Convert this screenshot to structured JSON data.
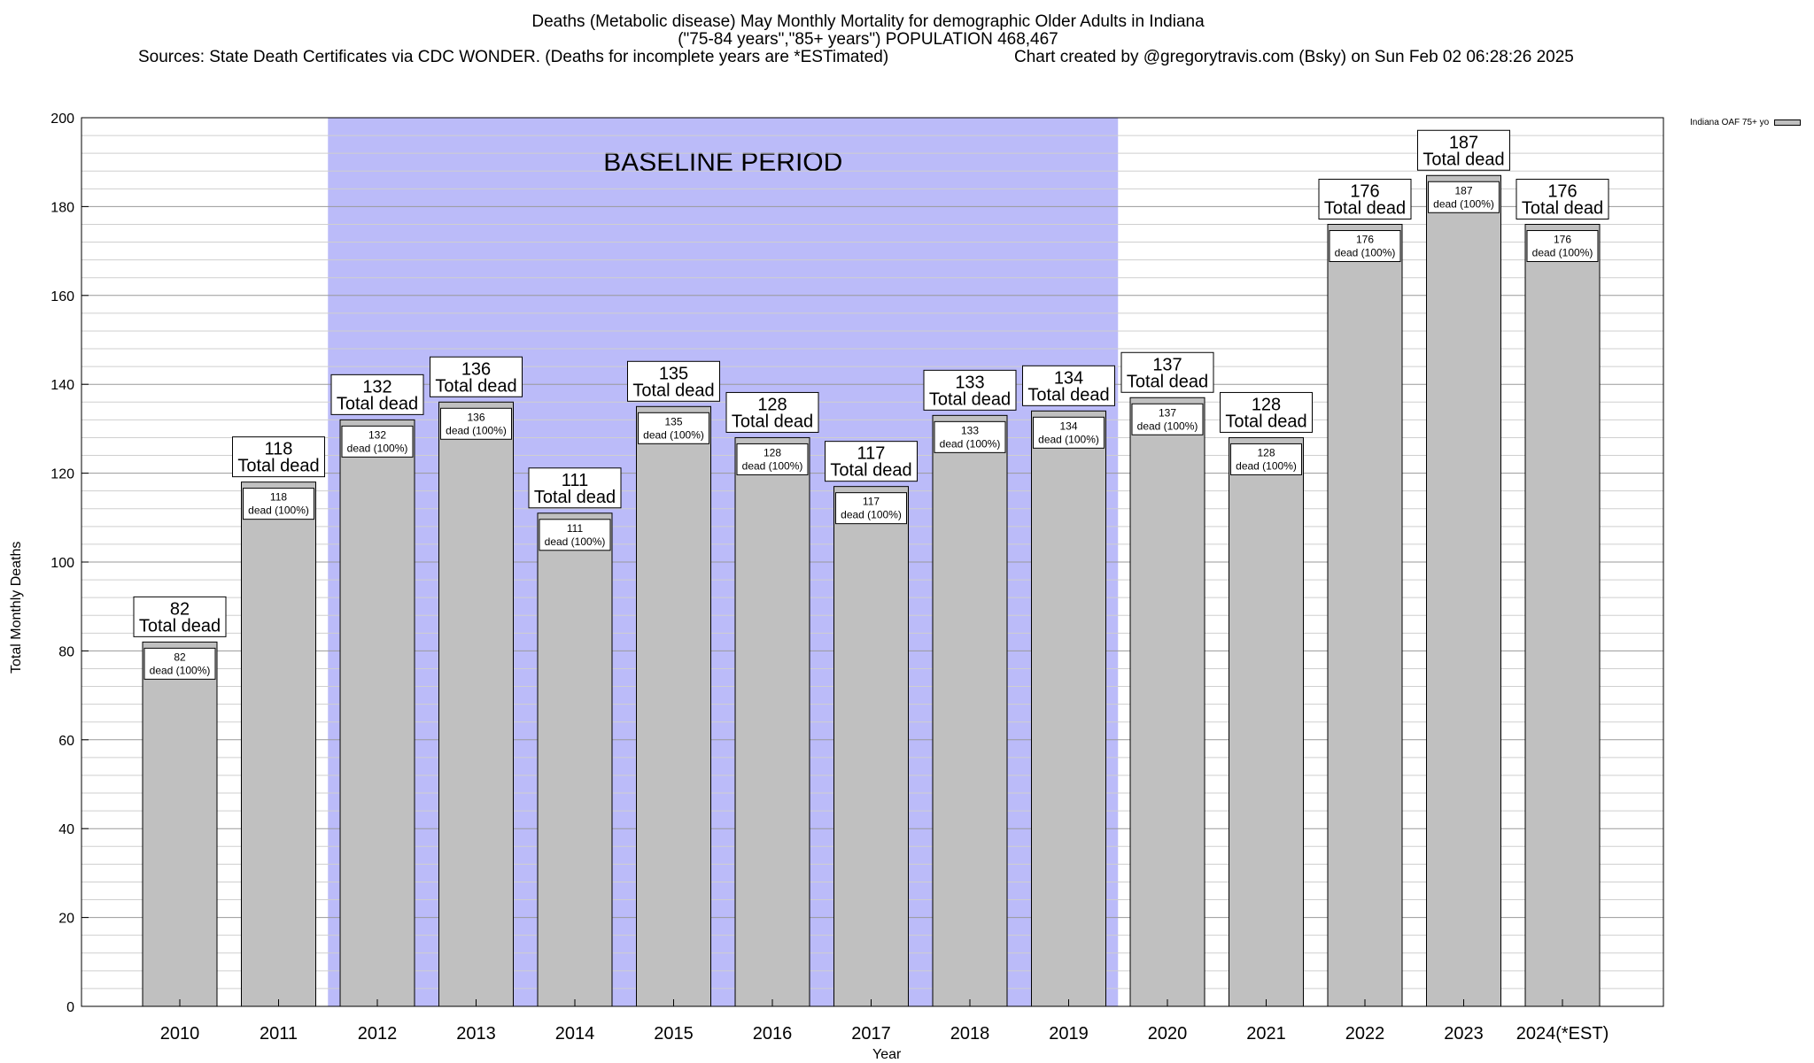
{
  "title": {
    "line1": "Deaths (Metabolic disease) May Monthly Mortality for demographic Older Adults in Indiana",
    "line2": "(\"75-84 years\",\"85+ years\") POPULATION 468,467",
    "sources": "Sources: State Death Certificates via CDC WONDER. (Deaths for incomplete years are *ESTimated)",
    "credit": "Chart created by @gregorytravis.com (Bsky) on Sun Feb 02 06:28:26 2025"
  },
  "chart_data": {
    "type": "bar",
    "categories": [
      "2010",
      "2011",
      "2012",
      "2013",
      "2014",
      "2015",
      "2016",
      "2017",
      "2018",
      "2019",
      "2020",
      "2021",
      "2022",
      "2023",
      "2024(*EST)"
    ],
    "series": [
      {
        "name": "Indiana OAF 75+ yo",
        "values": [
          82,
          118,
          132,
          136,
          111,
          135,
          128,
          117,
          133,
          134,
          137,
          128,
          176,
          187,
          176
        ],
        "color": "#c0c0c0"
      }
    ],
    "top_label_suffix": "Total dead",
    "inner_label_suffix": "dead (100%)",
    "xlabel": "Year",
    "ylabel": "Total Monthly Deaths",
    "ylim": [
      0,
      200
    ],
    "yticks": [
      0,
      20,
      40,
      60,
      80,
      100,
      120,
      140,
      160,
      180,
      200
    ],
    "grid": true,
    "legend_position": "top-right",
    "baseline_period": {
      "label": "BASELINE PERIOD",
      "from": "2012",
      "to": "2019",
      "color": "#bbbbf9"
    }
  }
}
